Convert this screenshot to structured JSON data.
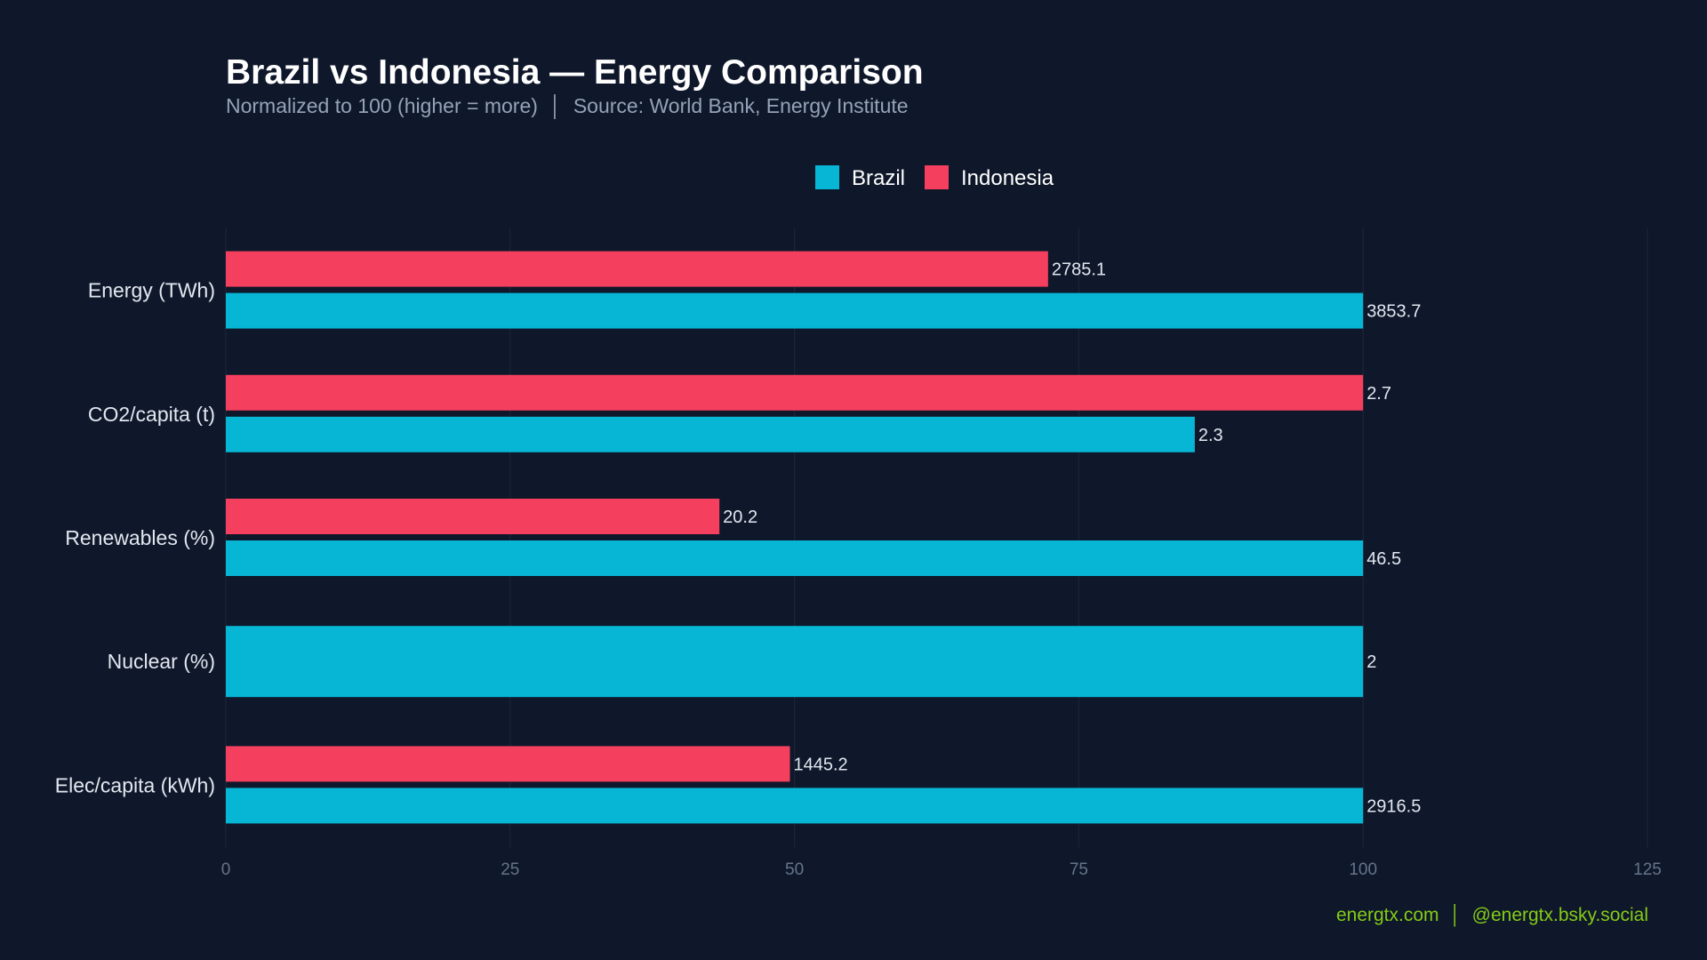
{
  "chart_data": {
    "type": "bar",
    "orientation": "horizontal",
    "title": "Brazil vs Indonesia — Energy Comparison",
    "subtitle": "Normalized to 100 (higher = more)  │  Source: World Bank, Energy Institute",
    "categories": [
      "Energy (TWh)",
      "CO2/capita (t)",
      "Renewables (%)",
      "Nuclear (%)",
      "Elec/capita (kWh)"
    ],
    "series": [
      {
        "name": "Brazil",
        "color": "#06b6d4",
        "values": [
          100,
          85.2,
          100,
          100,
          100
        ],
        "labels": [
          "3853.7",
          "2.3",
          "46.5",
          "2",
          "2916.5"
        ]
      },
      {
        "name": "Indonesia",
        "color": "#f43f5e",
        "values": [
          72.3,
          100,
          43.4,
          null,
          49.6
        ],
        "labels": [
          "2785.1",
          "2.7",
          "20.2",
          "",
          "1445.2"
        ]
      }
    ],
    "xlim": [
      0,
      125
    ],
    "xticks": [
      "0",
      "25",
      "50",
      "75",
      "100",
      "125"
    ],
    "grid": true,
    "legend_placement": "top-center"
  },
  "footer": {
    "site": "energtx.com",
    "separator": "│",
    "social": "@energtx.bsky.social"
  },
  "colors": {
    "background": "#0f172a",
    "grid": "#1e293b",
    "footer": "#84cc16"
  }
}
